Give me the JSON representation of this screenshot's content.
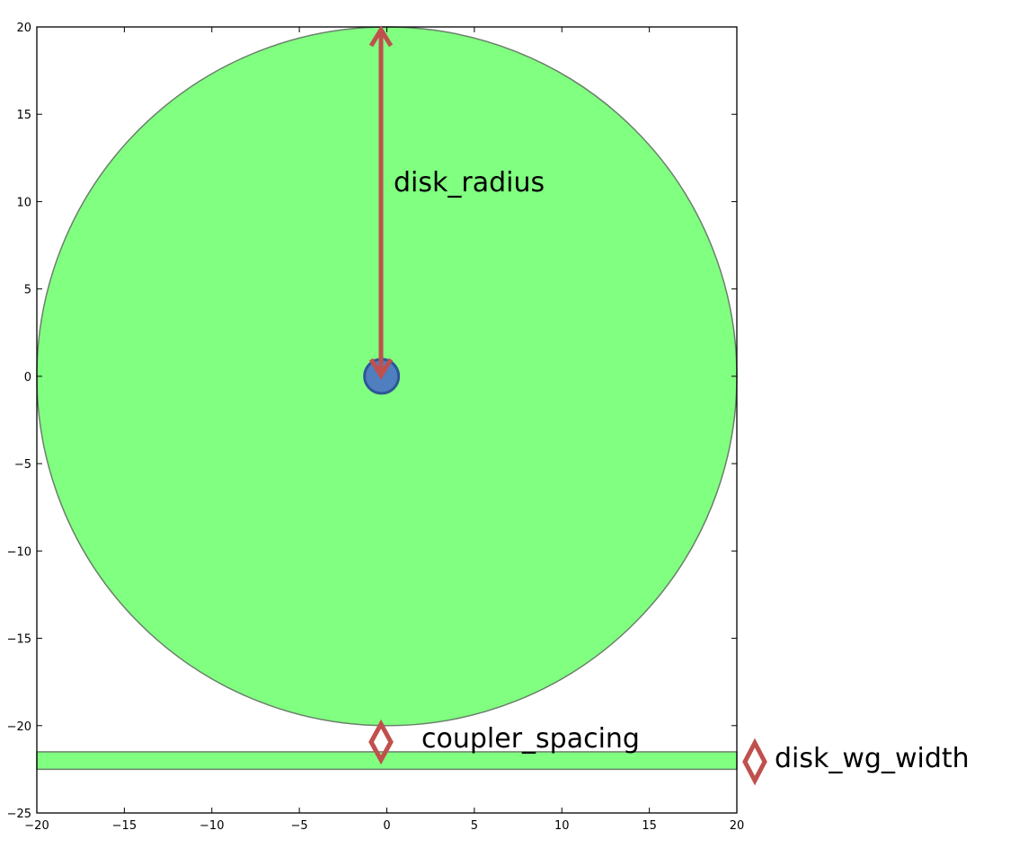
{
  "chart_data": {
    "type": "scatter",
    "xlim": [
      -20,
      20
    ],
    "ylim": [
      -25,
      20
    ],
    "x_ticks": [
      -20,
      -15,
      -10,
      -5,
      0,
      5,
      10,
      15,
      20
    ],
    "y_ticks": [
      20,
      15,
      10,
      5,
      0,
      -5,
      -10,
      -15,
      -20,
      -25
    ],
    "x_tick_labels": [
      "−20",
      "−15",
      "−10",
      "−5",
      "0",
      "5",
      "10",
      "15",
      "20"
    ],
    "y_tick_labels": [
      "20",
      "15",
      "10",
      "5",
      "0",
      "−5",
      "−10",
      "−15",
      "−20",
      "−25"
    ],
    "grid": false,
    "shapes": {
      "disk": {
        "center": [
          0,
          0
        ],
        "radius": 20
      },
      "waveguide": {
        "x": [
          -20,
          20
        ],
        "y": [
          -22.5,
          -21.5
        ]
      },
      "center_point": {
        "x": -0.3,
        "y": 0
      }
    },
    "colors": {
      "fill": "#80ff80",
      "shape_edge": "#6b7f6b",
      "center_fill": "#4f7fbf",
      "center_edge": "#2f5597",
      "annotation": "#c0504d"
    }
  },
  "annotations": {
    "disk_radius": "disk_radius",
    "coupler_spacing": "coupler_spacing",
    "disk_wg_width": "disk_wg_width"
  }
}
